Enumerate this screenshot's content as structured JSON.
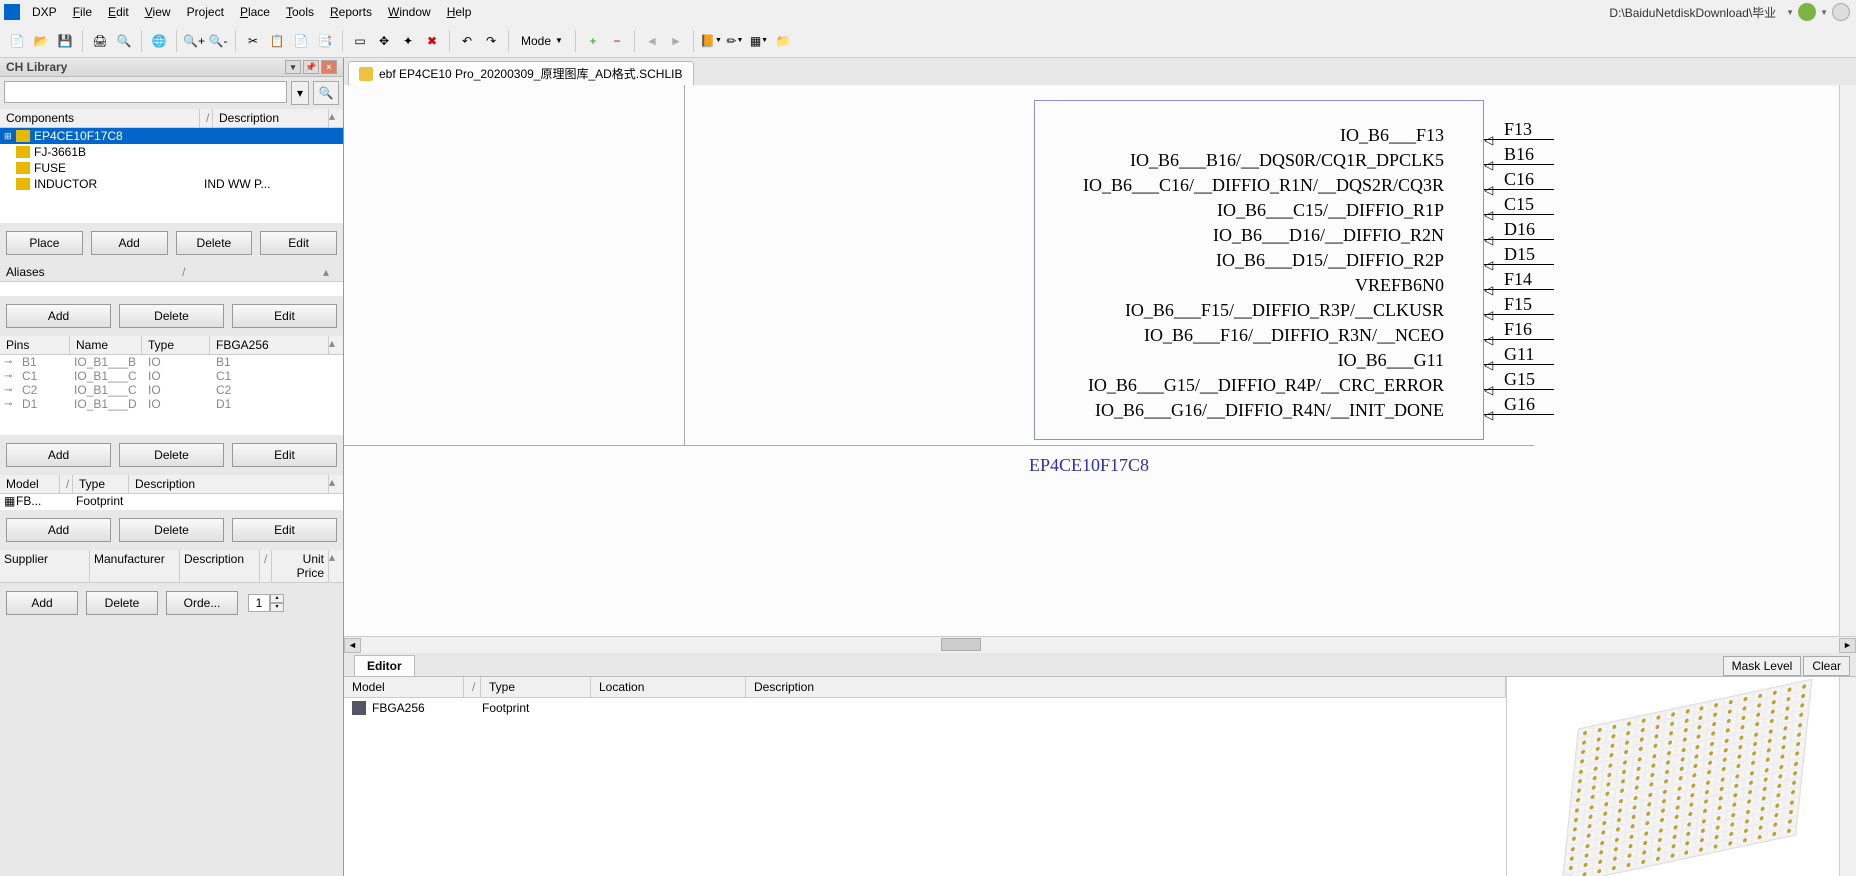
{
  "menubar": {
    "app": "DXP",
    "items": [
      "File",
      "Edit",
      "View",
      "Project",
      "Place",
      "Tools",
      "Reports",
      "Window",
      "Help"
    ],
    "path": "D:\\BaiduNetdiskDownload\\毕业"
  },
  "toolbar": {
    "mode_label": "Mode"
  },
  "leftPanel": {
    "title": "CH Library",
    "componentsHdr": {
      "c1": "Components",
      "c2": "Description"
    },
    "components": [
      {
        "name": "EP4CE10F17C8",
        "desc": "",
        "selected": true,
        "expandable": true
      },
      {
        "name": "FJ-3661B",
        "desc": ""
      },
      {
        "name": "FUSE",
        "desc": ""
      },
      {
        "name": "INDUCTOR",
        "desc": "IND WW P..."
      }
    ],
    "btns1": {
      "place": "Place",
      "add": "Add",
      "delete": "Delete",
      "edit": "Edit"
    },
    "aliasesHdr": "Aliases",
    "btns2": {
      "add": "Add",
      "delete": "Delete",
      "edit": "Edit"
    },
    "pinsHdr": {
      "c1": "Pins",
      "c2": "Name",
      "c3": "Type",
      "c4": "FBGA256"
    },
    "pins": [
      {
        "p": "B1",
        "n": "IO_B1___B",
        "t": "IO",
        "f": "B1"
      },
      {
        "p": "C1",
        "n": "IO_B1___C",
        "t": "IO",
        "f": "C1"
      },
      {
        "p": "C2",
        "n": "IO_B1___C",
        "t": "IO",
        "f": "C2"
      },
      {
        "p": "D1",
        "n": "IO_B1___D",
        "t": "IO",
        "f": "D1"
      }
    ],
    "btns3": {
      "add": "Add",
      "delete": "Delete",
      "edit": "Edit"
    },
    "modelHdr": {
      "c1": "Model",
      "c2": "Type",
      "c3": "Description"
    },
    "modelRow": {
      "m": "FB...",
      "t": "Footprint"
    },
    "btns4": {
      "add": "Add",
      "delete": "Delete",
      "edit": "Edit"
    },
    "supplierHdr": {
      "c1": "Supplier",
      "c2": "Manufacturer",
      "c3": "Description",
      "c4": "Unit Price"
    },
    "btns5": {
      "add": "Add",
      "delete": "Delete",
      "order": "Orde...",
      "qty": "1"
    }
  },
  "docTab": "ebf EP4CE10 Pro_20200309_原理图库_AD格式.SCHLIB",
  "schematic": {
    "partRef": "EP4CE10F17C8",
    "pins": [
      {
        "label": "IO_B6___F13",
        "des": "F13"
      },
      {
        "label": "IO_B6___B16/__DQS0R/CQ1R_DPCLK5",
        "des": "B16"
      },
      {
        "label": "IO_B6___C16/__DIFFIO_R1N/__DQS2R/CQ3R",
        "des": "C16"
      },
      {
        "label": "IO_B6___C15/__DIFFIO_R1P",
        "des": "C15"
      },
      {
        "label": "IO_B6___D16/__DIFFIO_R2N",
        "des": "D16"
      },
      {
        "label": "IO_B6___D15/__DIFFIO_R2P",
        "des": "D15"
      },
      {
        "label": "VREFB6N0",
        "des": "F14"
      },
      {
        "label": "IO_B6___F15/__DIFFIO_R3P/__CLKUSR",
        "des": "F15"
      },
      {
        "label": "IO_B6___F16/__DIFFIO_R3N/__NCEO",
        "des": "F16"
      },
      {
        "label": "IO_B6___G11",
        "des": "G11"
      },
      {
        "label": "IO_B6___G15/__DIFFIO_R4P/__CRC_ERROR",
        "des": "G15"
      },
      {
        "label": "IO_B6___G16/__DIFFIO_R4N/__INIT_DONE",
        "des": "G16"
      }
    ]
  },
  "editorTab": "Editor",
  "editorBtns": {
    "mask": "Mask Level",
    "clear": "Clear"
  },
  "bottomHdr": {
    "c1": "Model",
    "c2": "Type",
    "c3": "Location",
    "c4": "Description"
  },
  "bottomRow": {
    "model": "FBGA256",
    "type": "Footprint"
  }
}
